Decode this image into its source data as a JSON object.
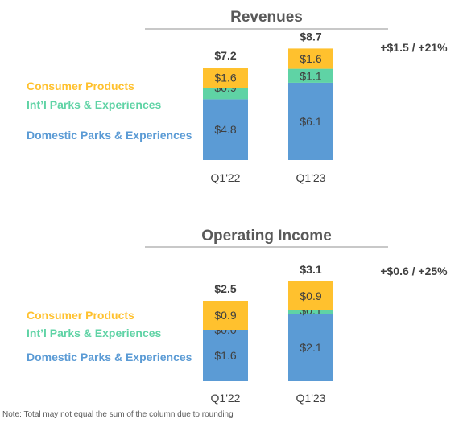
{
  "note": "Note: Total may not equal the sum of the column due to rounding",
  "colors": {
    "Consumer Products": "#FFC12E",
    "Int’l Parks & Experiences": "#5FD3A5",
    "Domestic Parks & Experiences": "#5B9BD5"
  },
  "chart_data": [
    {
      "type": "bar",
      "stacked": true,
      "title": "Revenues",
      "categories": [
        "Q1'22",
        "Q1'23"
      ],
      "series": [
        {
          "name": "Domestic Parks & Experiences",
          "values": [
            4.8,
            6.1
          ],
          "labels": [
            "$4.8",
            "$6.1"
          ]
        },
        {
          "name": "Int’l Parks & Experiences",
          "values": [
            0.9,
            1.1
          ],
          "labels": [
            "$0.9",
            "$1.1"
          ]
        },
        {
          "name": "Consumer Products",
          "values": [
            1.6,
            1.6
          ],
          "labels": [
            "$1.6",
            "$1.6"
          ]
        }
      ],
      "totals": [
        7.2,
        8.7
      ],
      "total_labels": [
        "$7.2",
        "$8.7"
      ],
      "change": "+$1.5 / +21%",
      "legend": [
        "Consumer Products",
        "Int’l Parks & Experiences",
        "Domestic Parks & Experiences"
      ]
    },
    {
      "type": "bar",
      "stacked": true,
      "title": "Operating Income",
      "categories": [
        "Q1'22",
        "Q1'23"
      ],
      "series": [
        {
          "name": "Domestic Parks & Experiences",
          "values": [
            1.6,
            2.1
          ],
          "labels": [
            "$1.6",
            "$2.1"
          ]
        },
        {
          "name": "Int’l Parks & Experiences",
          "values": [
            0.0,
            0.1
          ],
          "labels": [
            "$0.0",
            "$0.1"
          ]
        },
        {
          "name": "Consumer Products",
          "values": [
            0.9,
            0.9
          ],
          "labels": [
            "$0.9",
            "$0.9"
          ]
        }
      ],
      "totals": [
        2.5,
        3.1
      ],
      "total_labels": [
        "$2.5",
        "$3.1"
      ],
      "change": "+$0.6 / +25%",
      "legend": [
        "Consumer Products",
        "Int’l Parks & Experiences",
        "Domestic Parks & Experiences"
      ]
    }
  ]
}
